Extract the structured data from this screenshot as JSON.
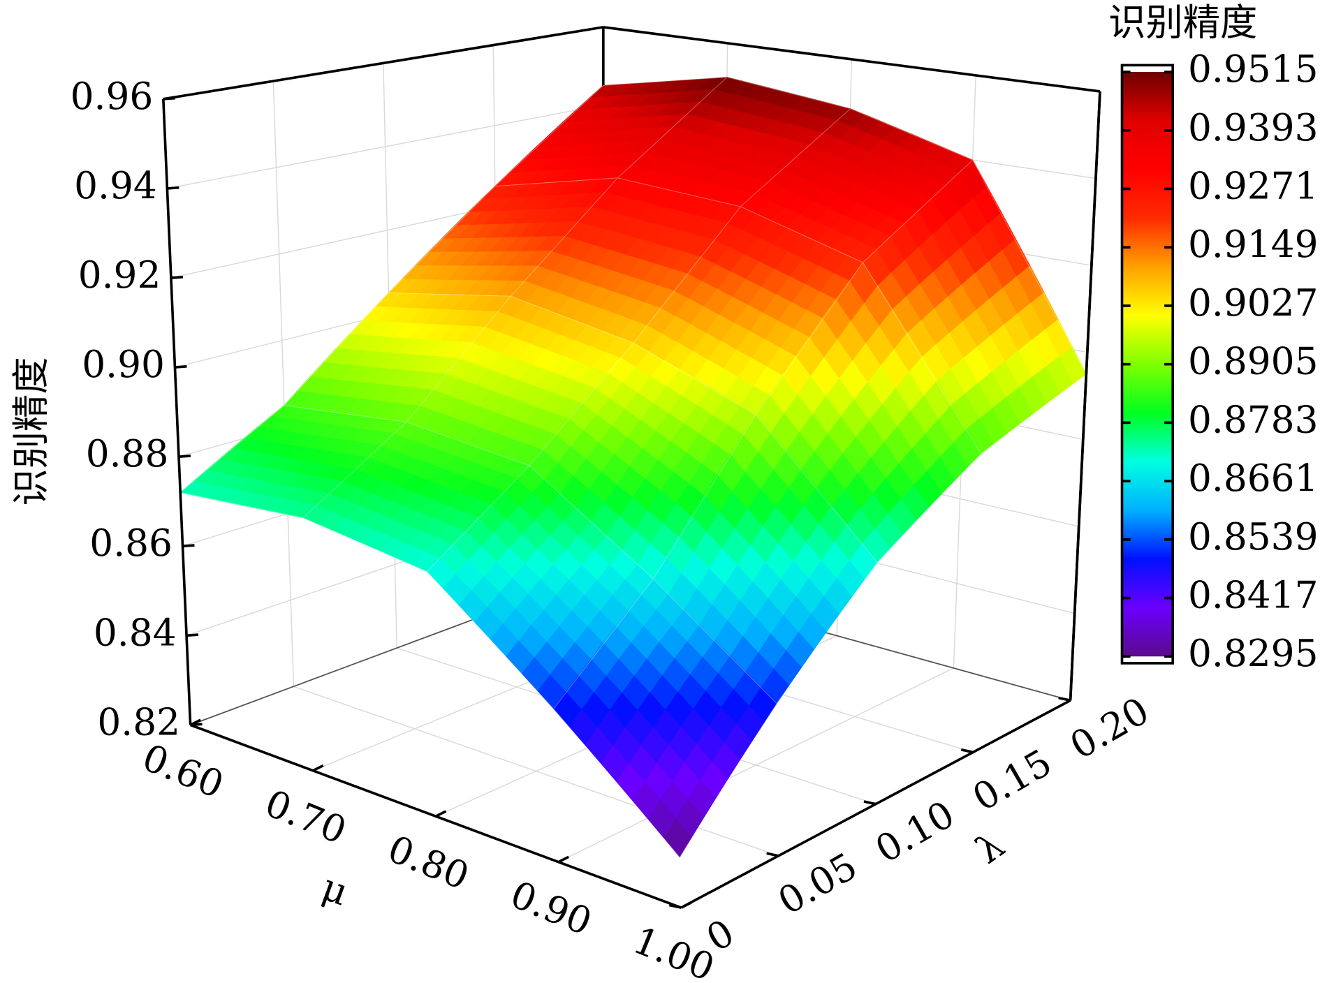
{
  "chart_data": {
    "type": "surface",
    "x_label": "μ",
    "y_label": "λ",
    "z_label": "识别精度",
    "colorbar_label": "识别精度",
    "x": [
      0.6,
      0.7,
      0.8,
      0.9,
      1.0
    ],
    "y": [
      0,
      0.05,
      0.1,
      0.15,
      0.2
    ],
    "z": [
      [
        0.872,
        0.885,
        0.905,
        0.925,
        0.945
      ],
      [
        0.874,
        0.888,
        0.91,
        0.932,
        0.9515
      ],
      [
        0.87,
        0.885,
        0.905,
        0.93,
        0.948
      ],
      [
        0.85,
        0.868,
        0.895,
        0.922,
        0.94
      ],
      [
        0.8295,
        0.85,
        0.87,
        0.885,
        0.895
      ]
    ],
    "xlim": [
      0.6,
      1.0
    ],
    "xticks": [
      {
        "value": 0.6,
        "label": "0.60"
      },
      {
        "value": 0.7,
        "label": "0.70"
      },
      {
        "value": 0.8,
        "label": "0.80"
      },
      {
        "value": 0.9,
        "label": "0.90"
      },
      {
        "value": 1.0,
        "label": "1.00"
      }
    ],
    "ylim": [
      0,
      0.2
    ],
    "yticks": [
      0,
      0.05,
      {
        "value": 0.1,
        "label": "0.10"
      },
      0.15,
      {
        "value": 0.2,
        "label": "0.20"
      }
    ],
    "zlim": [
      0.82,
      0.96
    ],
    "zticks": [
      0.82,
      0.84,
      0.86,
      0.88,
      {
        "value": 0.9,
        "label": "0.90"
      },
      0.92,
      0.94,
      0.96
    ],
    "clim": [
      0.8295,
      0.9515
    ],
    "cticks": [
      0.8295,
      0.8417,
      0.8539,
      0.8661,
      0.8783,
      0.8905,
      0.9027,
      0.9149,
      0.9271,
      0.9393,
      0.9515
    ],
    "colormap": [
      "#5c0a8c",
      "#6a00ff",
      "#0010ff",
      "#00b0ff",
      "#00ffe0",
      "#00ff20",
      "#80ff00",
      "#ffff00",
      "#ffa000",
      "#ff2a00",
      "#ff0000",
      "#e00000",
      "#6e0000"
    ],
    "grid": true
  }
}
